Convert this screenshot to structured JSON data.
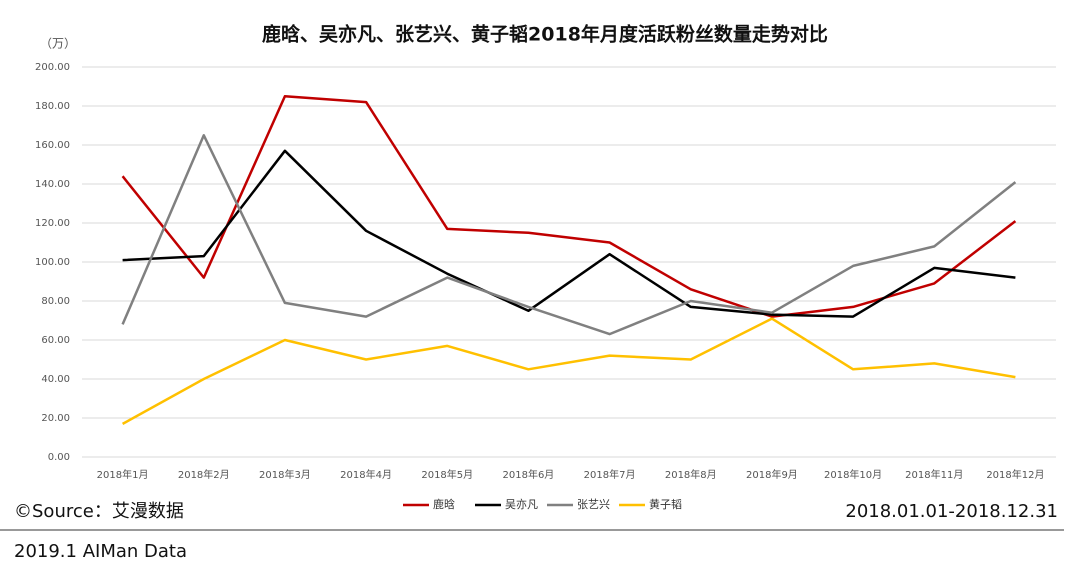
{
  "chart_data": {
    "type": "line",
    "title": "鹿晗、吴亦凡、张艺兴、黄子韬2018年月度活跃粉丝数量走势对比",
    "y_unit": "（万）",
    "categories": [
      "2018年1月",
      "2018年2月",
      "2018年3月",
      "2018年4月",
      "2018年5月",
      "2018年6月",
      "2018年7月",
      "2018年8月",
      "2018年9月",
      "2018年10月",
      "2018年11月",
      "2018年12月"
    ],
    "series": [
      {
        "name": "鹿晗",
        "color": "#c00000",
        "values": [
          144,
          92,
          185,
          182,
          117,
          115,
          110,
          86,
          72,
          77,
          89,
          121
        ]
      },
      {
        "name": "吴亦凡",
        "color": "#000000",
        "values": [
          101,
          103,
          157,
          116,
          94,
          75,
          104,
          77,
          73,
          72,
          97,
          92
        ]
      },
      {
        "name": "张艺兴",
        "color": "#808080",
        "values": [
          68,
          165,
          79,
          72,
          92,
          77,
          63,
          80,
          74,
          98,
          108,
          141
        ]
      },
      {
        "name": "黄子韬",
        "color": "#ffc000",
        "values": [
          17,
          40,
          60,
          50,
          57,
          45,
          52,
          50,
          71,
          45,
          48,
          41
        ]
      }
    ],
    "ylim": [
      0,
      200
    ],
    "yticks": [
      {
        "value": 0,
        "label": "0.00"
      },
      {
        "value": 20,
        "label": "20.00"
      },
      {
        "value": 40,
        "label": "40.00"
      },
      {
        "value": 60,
        "label": "60.00"
      },
      {
        "value": 80,
        "label": "80.00"
      },
      {
        "value": 100,
        "label": "100.00"
      },
      {
        "value": 120,
        "label": "120.00"
      },
      {
        "value": 140,
        "label": "140.00"
      },
      {
        "value": 160,
        "label": "160.00"
      },
      {
        "value": 180,
        "label": "180.00"
      },
      {
        "value": 200,
        "label": "200.00"
      }
    ],
    "grid": true,
    "legend": "bottom",
    "source": "©Source：艾漫数据",
    "date_range": "2018.01.01-2018.12.31",
    "footer": "2019.1  AIMan Data"
  }
}
